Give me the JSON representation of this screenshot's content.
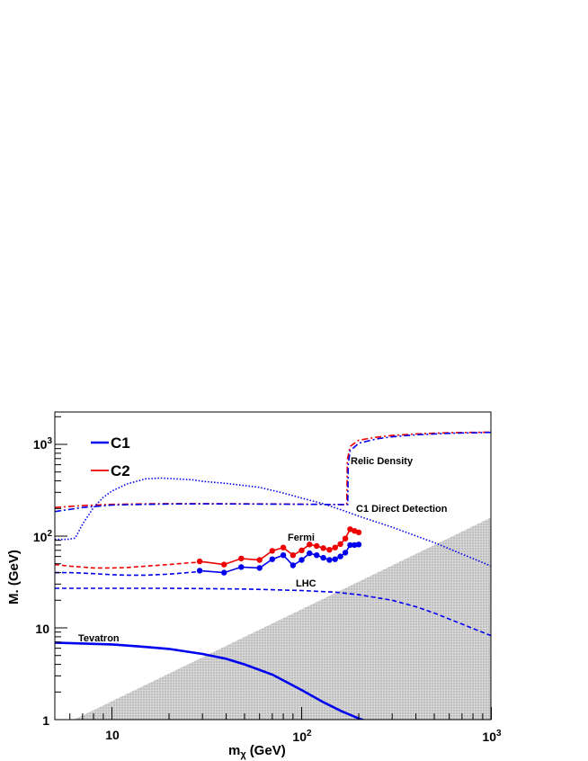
{
  "chart_data": {
    "type": "line",
    "title": "",
    "xlabel": {
      "main": "m",
      "sub": "χ",
      "unit": "(GeV)"
    },
    "ylabel": "M. (GeV)",
    "x_scale": "log",
    "y_scale": "log",
    "xlim": [
      5,
      1000
    ],
    "ylim": [
      1,
      2000
    ],
    "grid": false,
    "legend_position": "top-left",
    "legend": [
      {
        "label": "C1",
        "color": "#0000ee"
      },
      {
        "label": "C2",
        "color": "#ee0000"
      }
    ],
    "x_ticks": [
      {
        "base": "10",
        "exp": ""
      },
      {
        "base": "10",
        "exp": "2"
      },
      {
        "base": "10",
        "exp": "3"
      }
    ],
    "y_ticks": [
      {
        "base": "1",
        "exp": ""
      },
      {
        "base": "10",
        "exp": ""
      },
      {
        "base": "10",
        "exp": "2"
      },
      {
        "base": "10",
        "exp": "3"
      }
    ],
    "annotations": {
      "relic": "Relic Density",
      "direct": "C1 Direct Detection",
      "fermi": "Fermi",
      "lhc": "LHC",
      "tevatron": "Tevatron"
    },
    "excluded_region": {
      "description": "shaded",
      "color": "#c8c8c8",
      "x": [
        6.3,
        1000
      ],
      "y": [
        1,
        160
      ]
    },
    "series": [
      {
        "id": "relic_c2",
        "color": "#ee0000",
        "style": "dashdot",
        "x": [
          5,
          7,
          10,
          15,
          20,
          30,
          50,
          80,
          120,
          160,
          173,
          174,
          180,
          200,
          250,
          300,
          400,
          600,
          1000
        ],
        "y": [
          205,
          215,
          222,
          225,
          226,
          226,
          225,
          224,
          222,
          221,
          221,
          680,
          950,
          1110,
          1200,
          1250,
          1300,
          1340,
          1360
        ]
      },
      {
        "id": "relic_c1",
        "color": "#0000ee",
        "style": "dashdot",
        "x": [
          5,
          7,
          10,
          15,
          20,
          30,
          50,
          80,
          120,
          160,
          175,
          176,
          180,
          200,
          250,
          300,
          400,
          600,
          1000
        ],
        "y": [
          185,
          205,
          218,
          222,
          224,
          225,
          224,
          223,
          222,
          221,
          221,
          600,
          850,
          1030,
          1150,
          1210,
          1270,
          1320,
          1350
        ]
      },
      {
        "id": "direct_c1",
        "color": "#0000ee",
        "style": "dotted",
        "x": [
          5,
          5.8,
          6.4,
          7,
          8,
          9,
          10,
          12,
          15,
          18,
          22,
          27,
          30,
          40,
          60,
          80,
          100,
          130,
          160,
          200,
          300,
          500,
          1000
        ],
        "y": [
          92,
          92,
          95,
          135,
          205,
          265,
          310,
          370,
          420,
          430,
          420,
          410,
          395,
          375,
          340,
          295,
          260,
          225,
          195,
          165,
          125,
          85,
          47
        ]
      },
      {
        "id": "fermi_c2_dashed",
        "color": "#ee0000",
        "style": "dashed",
        "x": [
          5,
          6,
          7,
          8,
          10,
          12,
          15,
          20,
          25,
          29
        ],
        "y": [
          49,
          47,
          46,
          45,
          45,
          45.5,
          47,
          49,
          51,
          52
        ]
      },
      {
        "id": "fermi_c1_dashed",
        "color": "#0000ee",
        "style": "dashed",
        "x": [
          5,
          6,
          7,
          8,
          10,
          12,
          15,
          20,
          25,
          29
        ],
        "y": [
          40,
          40,
          39.5,
          39,
          38,
          37.5,
          37.5,
          38.5,
          40,
          41
        ]
      },
      {
        "id": "fermi_c2",
        "color": "#ee0000",
        "style": "solid",
        "markers": true,
        "x": [
          29,
          39,
          48,
          60,
          70,
          80,
          90,
          100,
          110,
          120,
          130,
          140,
          150,
          160,
          170,
          180,
          190,
          200
        ],
        "y": [
          53,
          49,
          57,
          55,
          69,
          75,
          62,
          70,
          81,
          78,
          74,
          71,
          75,
          82,
          94,
          119,
          114,
          110
        ]
      },
      {
        "id": "fermi_c1",
        "color": "#0000ee",
        "style": "solid",
        "markers": true,
        "x": [
          29,
          39,
          48,
          60,
          70,
          80,
          90,
          100,
          110,
          120,
          130,
          140,
          150,
          160,
          170,
          180,
          190,
          200
        ],
        "y": [
          42,
          40,
          46,
          45,
          56,
          62,
          48,
          55,
          65,
          62,
          58,
          55,
          56,
          60,
          66,
          80,
          80,
          81
        ]
      },
      {
        "id": "lhc_c1",
        "color": "#0000ee",
        "style": "dashed",
        "x": [
          5,
          10,
          20,
          50,
          100,
          150,
          200,
          300,
          400,
          500,
          700,
          1000
        ],
        "y": [
          27,
          27,
          27,
          26.5,
          25.5,
          24.5,
          23,
          20,
          17,
          14.5,
          11,
          8.2
        ]
      },
      {
        "id": "tevatron_c1",
        "color": "#0000ee",
        "style": "solid",
        "x": [
          5,
          10,
          15,
          20,
          30,
          40,
          50,
          70,
          100,
          130,
          160,
          200,
          230
        ],
        "y": [
          6.9,
          6.6,
          6.2,
          5.9,
          5.2,
          4.6,
          4.0,
          3.1,
          2.1,
          1.55,
          1.25,
          1.03,
          0.93
        ]
      }
    ]
  }
}
